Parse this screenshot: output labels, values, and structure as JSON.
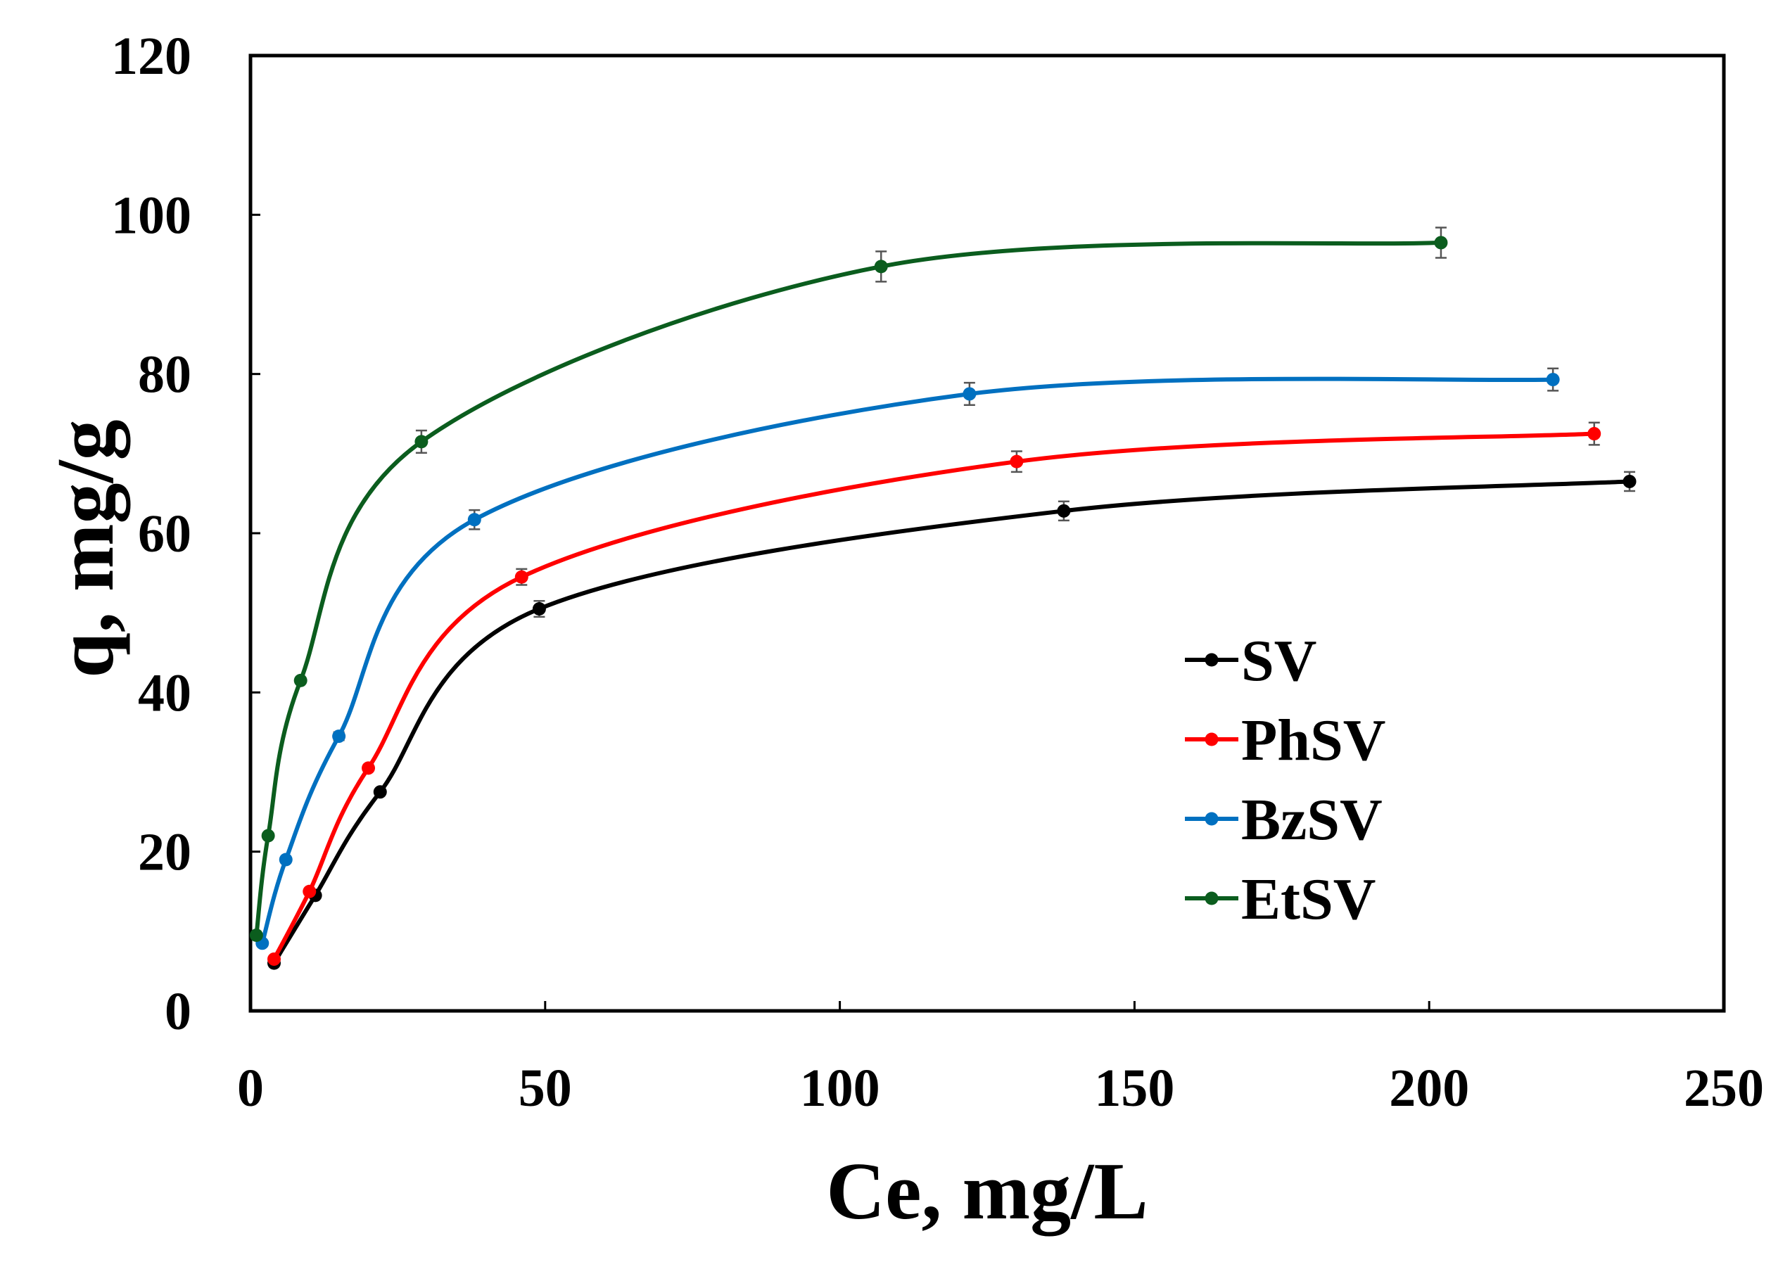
{
  "chart_data": {
    "type": "line",
    "title": "",
    "xlabel": "Ce, mg/L",
    "ylabel": "q, mg/g",
    "xlim": [
      0,
      250
    ],
    "ylim": [
      0,
      120
    ],
    "xticks": [
      0,
      50,
      100,
      150,
      200,
      250
    ],
    "yticks": [
      0,
      20,
      40,
      60,
      80,
      100,
      120
    ],
    "grid": false,
    "legend_position": "right",
    "series": [
      {
        "name": "SV",
        "color": "#000000",
        "x": [
          4,
          11,
          22,
          49,
          138,
          234
        ],
        "y": [
          6,
          14.5,
          27.5,
          50.5,
          62.8,
          66.5
        ],
        "err": [
          0,
          0,
          0,
          1.0,
          1.2,
          1.2
        ]
      },
      {
        "name": "PhSV",
        "color": "#ff0000",
        "x": [
          4,
          10,
          20,
          46,
          130,
          228
        ],
        "y": [
          6.5,
          15,
          30.5,
          54.5,
          69,
          72.5
        ],
        "err": [
          0,
          0,
          0,
          1.0,
          1.3,
          1.4
        ]
      },
      {
        "name": "BzSV",
        "color": "#0070c0",
        "x": [
          2,
          6,
          15,
          38,
          122,
          221
        ],
        "y": [
          8.5,
          19,
          34.5,
          61.7,
          77.5,
          79.3
        ],
        "err": [
          0,
          0,
          0.5,
          1.2,
          1.4,
          1.4
        ]
      },
      {
        "name": "EtSV",
        "color": "#0b5d1e",
        "x": [
          1,
          3,
          8.5,
          29,
          107,
          202
        ],
        "y": [
          9.5,
          22,
          41.5,
          71.5,
          93.5,
          96.5
        ],
        "err": [
          0,
          0,
          0,
          1.4,
          1.9,
          1.9
        ]
      }
    ]
  }
}
